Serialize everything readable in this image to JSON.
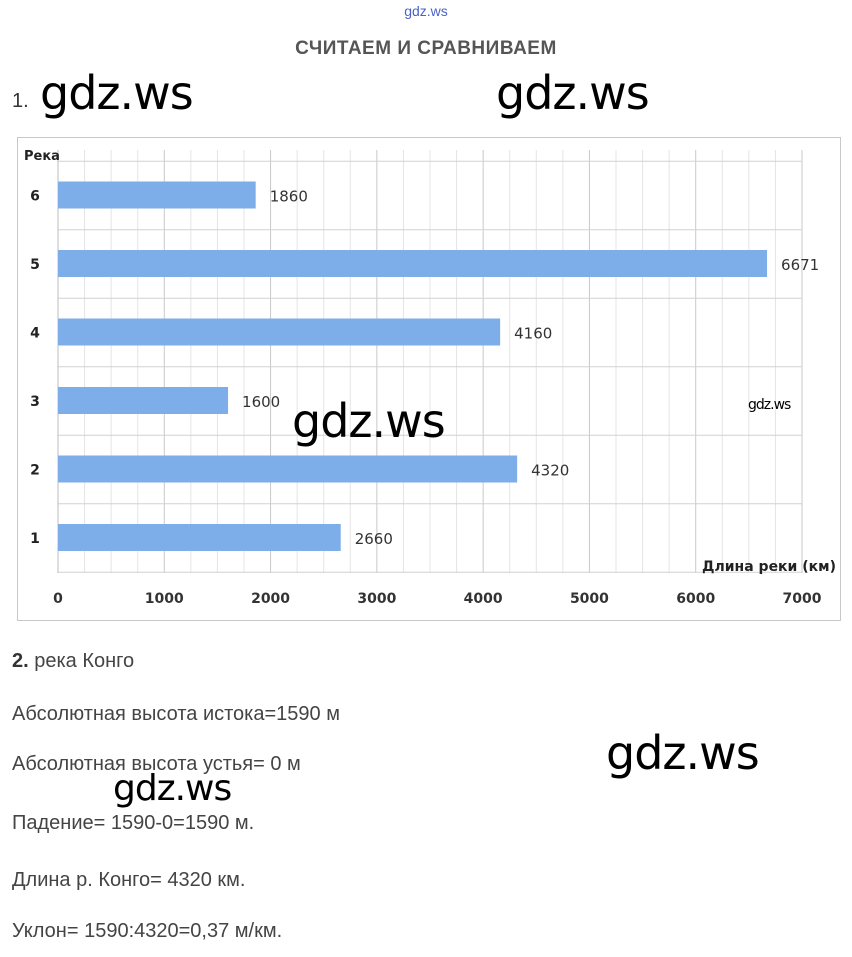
{
  "watermarks": {
    "top": "gdz.ws",
    "main": "gdz.ws"
  },
  "page_title": "СЧИТАЕМ И СРАВНИВАЕМ",
  "task1": {
    "number": "1."
  },
  "chart_data": {
    "type": "bar",
    "orientation": "horizontal",
    "ylabel": "Река",
    "xlabel": "Длина реки (км)",
    "categories": [
      "1",
      "2",
      "3",
      "4",
      "5",
      "6"
    ],
    "values": [
      2660,
      4320,
      1600,
      4160,
      6671,
      1860
    ],
    "xlim": [
      0,
      7000
    ],
    "xticks": [
      0,
      1000,
      2000,
      3000,
      4000,
      5000,
      6000,
      7000
    ],
    "grid": true,
    "bar_color": "#7eaee9",
    "data_labels": true
  },
  "task2": {
    "number": "2.",
    "river": "река Конго",
    "lines": [
      "Абсолютная высота истока=1590 м",
      "Абсолютная высота устья= 0 м",
      "Падение= 1590-0=1590 м.",
      "Длина р. Конго= 4320 км.",
      "Уклон= 1590:4320=0,37 м/км."
    ]
  }
}
